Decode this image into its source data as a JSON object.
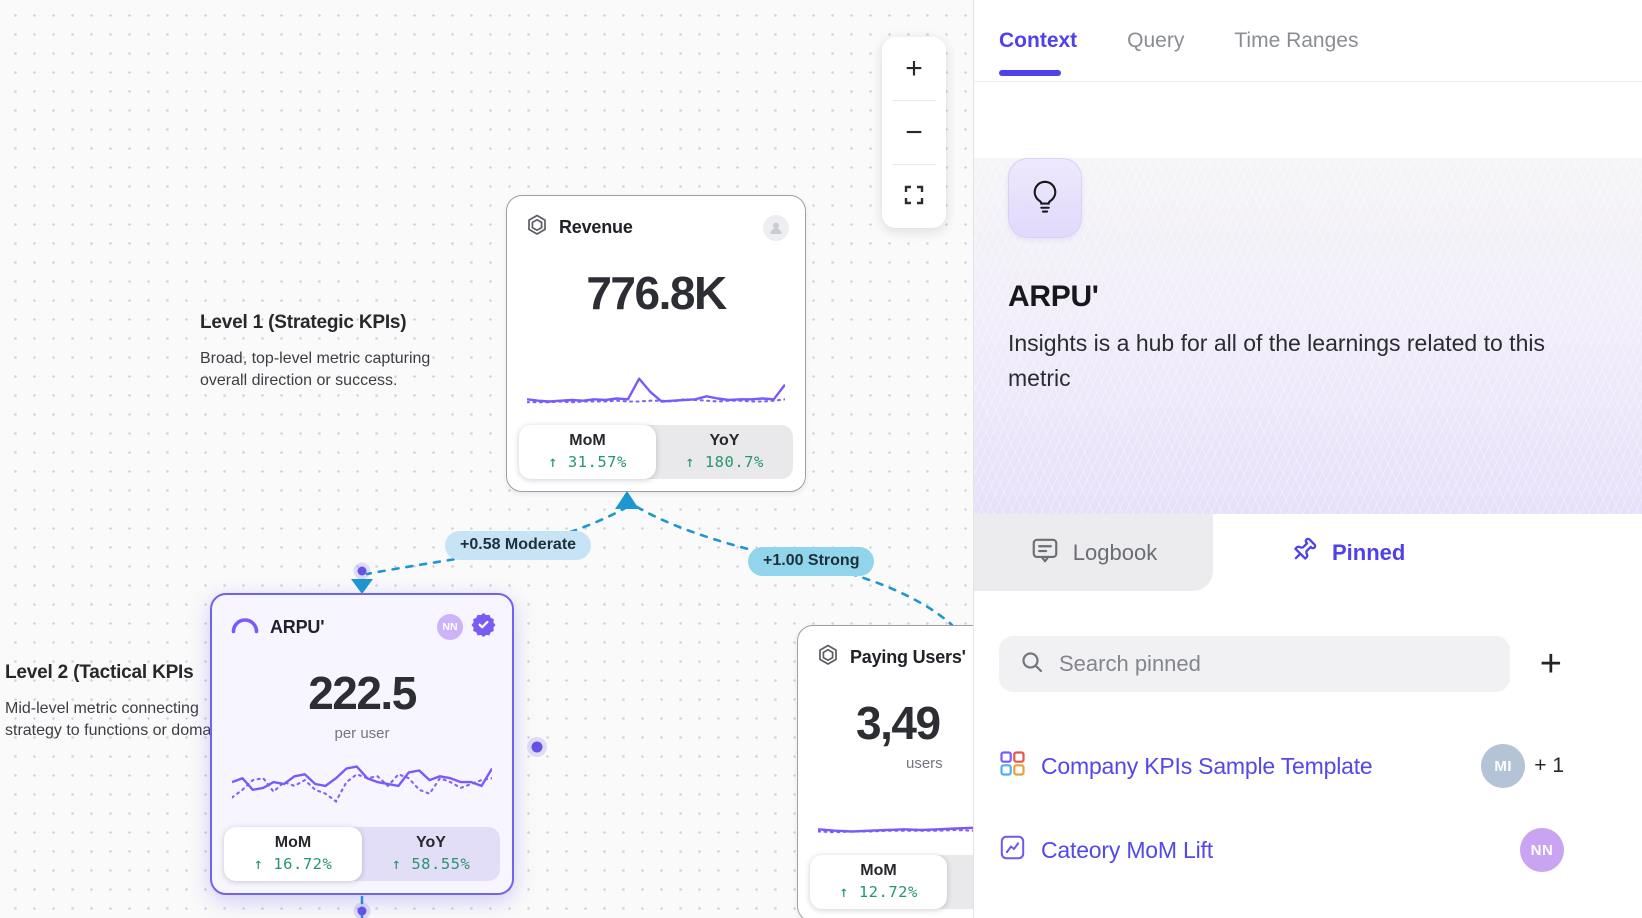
{
  "colors": {
    "accent": "#4f42e8",
    "sparkline": "#7a5af8",
    "edge_blue": "#1d97cf",
    "metric_green": "#27966d",
    "selected_border": "#7163ea"
  },
  "canvas": {
    "zoom_controls": {
      "zoom_in_label": "+",
      "zoom_out_label": "−"
    },
    "levels": [
      {
        "title": "Level 1 (Strategic KPIs)",
        "lines": [
          "Broad, top-level metric capturing",
          "overall direction or success."
        ]
      },
      {
        "title": "Level 2 (Tactical KPIs",
        "lines": [
          "Mid-level metric connecting",
          "strategy to functions or doma"
        ]
      }
    ],
    "edges": [
      {
        "label": "+0.58 Moderate"
      },
      {
        "label": "+1.00 Strong"
      }
    ],
    "cards": {
      "revenue": {
        "title": "Revenue",
        "value": "776.8K",
        "stats": [
          {
            "label": "MoM",
            "value": "↑ 31.57%"
          },
          {
            "label": "YoY",
            "value": "↑ 180.7%"
          }
        ],
        "sparkline": {
          "solid": [
            22,
            23,
            23.5,
            23,
            22.5,
            23,
            22,
            22.5,
            21.5,
            22,
            8,
            17,
            23.5,
            23,
            22.5,
            22,
            20,
            21.5,
            22.5,
            22,
            22,
            21.5,
            22,
            12
          ],
          "dotted": [
            24,
            24,
            24,
            23.5,
            24,
            23.5,
            23.5,
            23.5,
            23,
            23.5,
            23.5,
            23,
            23,
            23.5,
            22,
            22.5,
            23,
            23.5,
            23,
            23,
            23.5,
            23.5,
            23,
            22
          ]
        }
      },
      "arpu": {
        "title": "ARPU'",
        "value": "222.5",
        "unit": "per user",
        "avatar": "NN",
        "stats": [
          {
            "label": "MoM",
            "value": "↑ 16.72%"
          },
          {
            "label": "YoY",
            "value": "↑ 58.55%"
          }
        ],
        "sparkline": {
          "solid": [
            14,
            12,
            18,
            17,
            14,
            15,
            11,
            10,
            15,
            16,
            12,
            7,
            6,
            12,
            14,
            15,
            16,
            9,
            8,
            13,
            11,
            12,
            14,
            14,
            16,
            7
          ],
          "dotted": [
            22,
            18,
            13,
            12,
            19,
            14,
            16,
            13,
            18,
            20,
            24,
            14,
            10,
            12,
            11,
            16,
            10,
            12,
            18,
            20,
            12,
            14,
            17,
            15,
            13,
            12
          ]
        }
      },
      "paying_users": {
        "title": "Paying Users'",
        "value": "3,49",
        "unit": "users",
        "stats": [
          {
            "label": "MoM",
            "value": "↑ 12.72%"
          }
        ],
        "sparkline": {
          "solid": [
            22,
            23,
            23.5,
            23,
            22.5,
            22,
            22.5,
            22,
            21.5,
            21,
            21.5,
            20.5,
            21.5,
            6,
            18,
            23
          ],
          "dotted": [
            23.5,
            24,
            23.5,
            23.5,
            23,
            23,
            23,
            23,
            22.5,
            23,
            22.5,
            22.5,
            22.5,
            22.5,
            22.5,
            22.5
          ]
        }
      }
    }
  },
  "sidebar": {
    "tabs": [
      {
        "label": "Context"
      },
      {
        "label": "Query"
      },
      {
        "label": "Time Ranges"
      }
    ],
    "metric": {
      "title": "ARPU'",
      "description": "Insights is a hub for all of the learnings related to this metric"
    },
    "panel_tabs": [
      {
        "label": "Logbook"
      },
      {
        "label": "Pinned"
      }
    ],
    "search": {
      "placeholder": "Search pinned",
      "add_label": "+"
    },
    "pinned": [
      {
        "label": "Company KPIs Sample Template",
        "avatar": "MI",
        "extra": "+ 1"
      },
      {
        "label": "Cateory MoM Lift",
        "avatar": "NN"
      }
    ]
  }
}
